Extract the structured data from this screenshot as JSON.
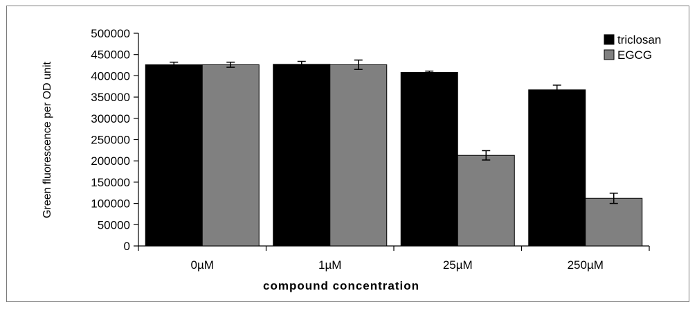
{
  "chart_data": {
    "type": "bar",
    "categories": [
      "0µM",
      "1µM",
      "25µM",
      "250µM"
    ],
    "series": [
      {
        "name": "triclosan",
        "color": "#000000",
        "values": [
          426000,
          427000,
          408000,
          367000
        ],
        "errors": [
          6000,
          7000,
          3000,
          11000
        ]
      },
      {
        "name": "EGCG",
        "color": "#808080",
        "values": [
          426000,
          426000,
          213000,
          112000
        ],
        "errors": [
          6000,
          11000,
          11000,
          12000
        ]
      }
    ],
    "xlabel": "compound concentration",
    "ylabel": "Green fluorescence per OD unit",
    "ylim": [
      0,
      500000
    ],
    "yticks": [
      0,
      50000,
      100000,
      150000,
      200000,
      250000,
      300000,
      350000,
      400000,
      450000,
      500000
    ],
    "legend_position": "top-right",
    "grid": false
  }
}
